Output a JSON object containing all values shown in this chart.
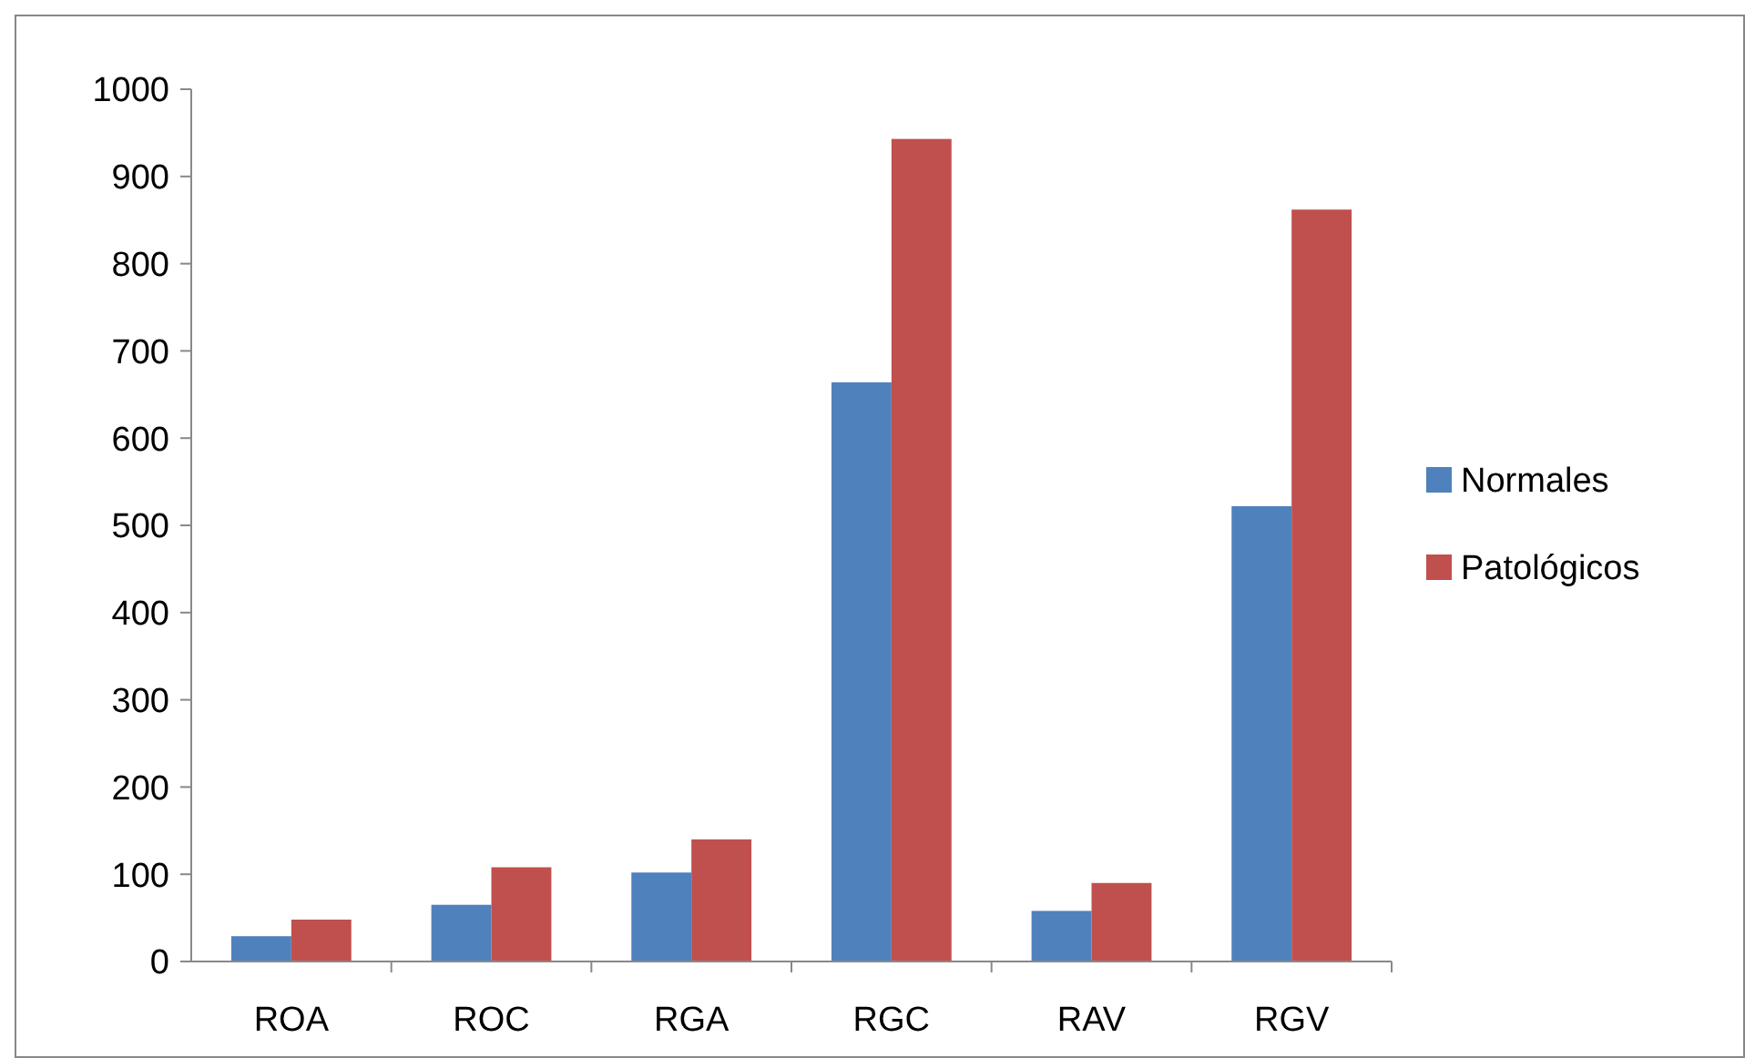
{
  "chart_data": {
    "type": "bar",
    "categories": [
      "ROA",
      "ROC",
      "RGA",
      "RGC",
      "RAV",
      "RGV"
    ],
    "series": [
      {
        "name": "Normales",
        "color": "#4f81bd",
        "values": [
          29,
          65,
          102,
          664,
          58,
          522
        ]
      },
      {
        "name": "Patológicos",
        "color": "#c0504d",
        "values": [
          48,
          108,
          140,
          943,
          90,
          862
        ]
      }
    ],
    "ylim": [
      0,
      1000
    ],
    "yticks": [
      0,
      100,
      200,
      300,
      400,
      500,
      600,
      700,
      800,
      900,
      1000
    ],
    "grid": false,
    "legend": "right"
  }
}
